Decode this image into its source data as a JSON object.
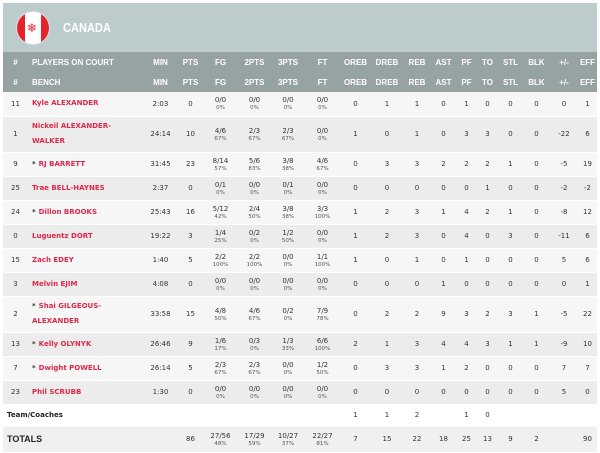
{
  "team": {
    "name": "CANADA",
    "flag_icon": "canada-flag-icon",
    "accent": "#e0284a"
  },
  "headers_on_court": [
    "#",
    "PLAYERS ON COURT",
    "MIN",
    "PTS",
    "FG",
    "2PTS",
    "3PTS",
    "FT",
    "OREB",
    "DREB",
    "REB",
    "AST",
    "PF",
    "TO",
    "STL",
    "BLK",
    "+/-",
    "EFF"
  ],
  "headers_bench": [
    "#",
    "BENCH",
    "MIN",
    "PTS",
    "FG",
    "2PTS",
    "3PTS",
    "FT",
    "OREB",
    "DREB",
    "REB",
    "AST",
    "PF",
    "TO",
    "STL",
    "BLK",
    "+/-",
    "EFF"
  ],
  "players": [
    {
      "num": "11",
      "name": "Kyle ALEXANDER",
      "starter": "",
      "min": "2:03",
      "pts": "0",
      "fg": [
        "0/0",
        "0%"
      ],
      "p2": [
        "0/0",
        "0%"
      ],
      "p3": [
        "0/0",
        "0%"
      ],
      "ft": [
        "0/0",
        "0%"
      ],
      "stats": [
        "0",
        "1",
        "1",
        "0",
        "1",
        "0",
        "0",
        "0",
        "0",
        "1"
      ]
    },
    {
      "num": "1",
      "name": "Nickeil ALEXANDER-WALKER",
      "starter": "",
      "min": "24:14",
      "pts": "10",
      "fg": [
        "4/6",
        "67%"
      ],
      "p2": [
        "2/3",
        "67%"
      ],
      "p3": [
        "2/3",
        "67%"
      ],
      "ft": [
        "0/0",
        "0%"
      ],
      "stats": [
        "1",
        "0",
        "1",
        "0",
        "3",
        "3",
        "0",
        "0",
        "-22",
        "6"
      ]
    },
    {
      "num": "9",
      "name": "RJ BARRETT",
      "starter": "*",
      "min": "31:45",
      "pts": "23",
      "fg": [
        "8/14",
        "57%"
      ],
      "p2": [
        "5/6",
        "83%"
      ],
      "p3": [
        "3/8",
        "38%"
      ],
      "ft": [
        "4/6",
        "67%"
      ],
      "stats": [
        "0",
        "3",
        "3",
        "2",
        "2",
        "2",
        "1",
        "0",
        "-5",
        "19"
      ]
    },
    {
      "num": "25",
      "name": "Trae BELL-HAYNES",
      "starter": "",
      "min": "2:37",
      "pts": "0",
      "fg": [
        "0/1",
        "0%"
      ],
      "p2": [
        "0/0",
        "0%"
      ],
      "p3": [
        "0/1",
        "0%"
      ],
      "ft": [
        "0/0",
        "0%"
      ],
      "stats": [
        "0",
        "0",
        "0",
        "0",
        "0",
        "1",
        "0",
        "0",
        "-2",
        "-2"
      ]
    },
    {
      "num": "24",
      "name": "Dillon BROOKS",
      "starter": "*",
      "min": "25:43",
      "pts": "16",
      "fg": [
        "5/12",
        "42%"
      ],
      "p2": [
        "2/4",
        "50%"
      ],
      "p3": [
        "3/8",
        "38%"
      ],
      "ft": [
        "3/3",
        "100%"
      ],
      "stats": [
        "1",
        "2",
        "3",
        "1",
        "4",
        "2",
        "1",
        "0",
        "-8",
        "12"
      ]
    },
    {
      "num": "0",
      "name": "Luguentz DORT",
      "starter": "",
      "min": "19:22",
      "pts": "3",
      "fg": [
        "1/4",
        "25%"
      ],
      "p2": [
        "0/2",
        "0%"
      ],
      "p3": [
        "1/2",
        "50%"
      ],
      "ft": [
        "0/0",
        "0%"
      ],
      "stats": [
        "1",
        "2",
        "3",
        "0",
        "4",
        "0",
        "3",
        "0",
        "-11",
        "6"
      ]
    },
    {
      "num": "15",
      "name": "Zach EDEY",
      "starter": "",
      "min": "1:40",
      "pts": "5",
      "fg": [
        "2/2",
        "100%"
      ],
      "p2": [
        "2/2",
        "100%"
      ],
      "p3": [
        "0/0",
        "0%"
      ],
      "ft": [
        "1/1",
        "100%"
      ],
      "stats": [
        "1",
        "0",
        "1",
        "0",
        "1",
        "0",
        "0",
        "0",
        "5",
        "6"
      ]
    },
    {
      "num": "3",
      "name": "Melvin EJIM",
      "starter": "",
      "min": "4:08",
      "pts": "0",
      "fg": [
        "0/0",
        "0%"
      ],
      "p2": [
        "0/0",
        "0%"
      ],
      "p3": [
        "0/0",
        "0%"
      ],
      "ft": [
        "0/0",
        "0%"
      ],
      "stats": [
        "0",
        "0",
        "0",
        "1",
        "0",
        "0",
        "0",
        "0",
        "0",
        "1"
      ]
    },
    {
      "num": "2",
      "name": "Shai GILGEOUS-ALEXANDER",
      "starter": "*",
      "min": "33:58",
      "pts": "15",
      "fg": [
        "4/8",
        "50%"
      ],
      "p2": [
        "4/6",
        "67%"
      ],
      "p3": [
        "0/2",
        "0%"
      ],
      "ft": [
        "7/9",
        "78%"
      ],
      "stats": [
        "0",
        "2",
        "2",
        "9",
        "3",
        "2",
        "3",
        "1",
        "-5",
        "22"
      ]
    },
    {
      "num": "13",
      "name": "Kelly OLYNYK",
      "starter": "*",
      "min": "26:46",
      "pts": "9",
      "fg": [
        "1/6",
        "17%"
      ],
      "p2": [
        "0/3",
        "0%"
      ],
      "p3": [
        "1/3",
        "33%"
      ],
      "ft": [
        "6/6",
        "100%"
      ],
      "stats": [
        "2",
        "1",
        "3",
        "4",
        "4",
        "3",
        "1",
        "1",
        "-9",
        "10"
      ]
    },
    {
      "num": "7",
      "name": "Dwight POWELL",
      "starter": "*",
      "min": "26:14",
      "pts": "5",
      "fg": [
        "2/3",
        "67%"
      ],
      "p2": [
        "2/3",
        "67%"
      ],
      "p3": [
        "0/0",
        "0%"
      ],
      "ft": [
        "1/2",
        "50%"
      ],
      "stats": [
        "0",
        "3",
        "3",
        "1",
        "2",
        "0",
        "0",
        "0",
        "7",
        "7"
      ]
    },
    {
      "num": "23",
      "name": "Phil SCRUBB",
      "starter": "",
      "min": "1:30",
      "pts": "0",
      "fg": [
        "0/0",
        "0%"
      ],
      "p2": [
        "0/0",
        "0%"
      ],
      "p3": [
        "0/0",
        "0%"
      ],
      "ft": [
        "0/0",
        "0%"
      ],
      "stats": [
        "0",
        "0",
        "0",
        "0",
        "0",
        "0",
        "0",
        "0",
        "5",
        "0"
      ]
    }
  ],
  "team_row": {
    "label": "Team/Coaches",
    "stats": [
      "1",
      "1",
      "2",
      "",
      "1",
      "0",
      "",
      "",
      "",
      ""
    ]
  },
  "totals": {
    "label": "TOTALS",
    "min": "",
    "pts": "86",
    "fg": [
      "27/56",
      "48%"
    ],
    "p2": [
      "17/29",
      "59%"
    ],
    "p3": [
      "10/27",
      "37%"
    ],
    "ft": [
      "22/27",
      "81%"
    ],
    "stats": [
      "7",
      "15",
      "22",
      "18",
      "25",
      "13",
      "9",
      "2",
      "",
      "90"
    ]
  }
}
